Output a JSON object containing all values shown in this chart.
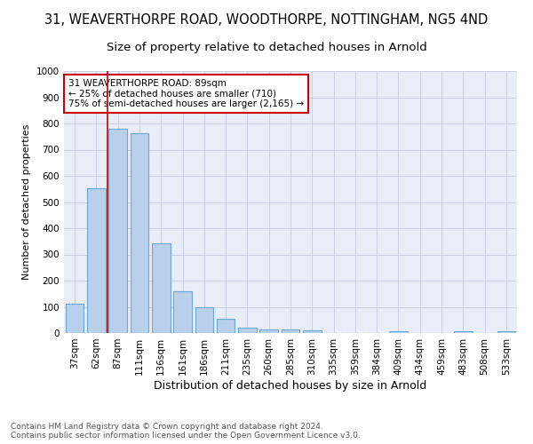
{
  "title": "31, WEAVERTHORPE ROAD, WOODTHORPE, NOTTINGHAM, NG5 4ND",
  "subtitle": "Size of property relative to detached houses in Arnold",
  "xlabel": "Distribution of detached houses by size in Arnold",
  "ylabel": "Number of detached properties",
  "footer_line1": "Contains HM Land Registry data © Crown copyright and database right 2024.",
  "footer_line2": "Contains public sector information licensed under the Open Government Licence v3.0.",
  "categories": [
    "37sqm",
    "62sqm",
    "87sqm",
    "111sqm",
    "136sqm",
    "161sqm",
    "186sqm",
    "211sqm",
    "235sqm",
    "260sqm",
    "285sqm",
    "310sqm",
    "335sqm",
    "359sqm",
    "384sqm",
    "409sqm",
    "434sqm",
    "459sqm",
    "483sqm",
    "508sqm",
    "533sqm"
  ],
  "values": [
    113,
    553,
    778,
    763,
    344,
    160,
    97,
    53,
    20,
    14,
    14,
    9,
    0,
    0,
    0,
    8,
    0,
    0,
    8,
    0,
    8
  ],
  "bar_color": "#b8d0ea",
  "bar_edge_color": "#6aaad4",
  "annotation_text": "31 WEAVERTHORPE ROAD: 89sqm\n← 25% of detached houses are smaller (710)\n75% of semi-detached houses are larger (2,165) →",
  "annotation_box_edge_color": "#cc0000",
  "annotation_box_face_color": "#ffffff",
  "vline_color": "#cc0000",
  "vline_bar_index": 2,
  "ylim": [
    0,
    1000
  ],
  "yticks": [
    0,
    100,
    200,
    300,
    400,
    500,
    600,
    700,
    800,
    900,
    1000
  ],
  "fig_bg_color": "#ffffff",
  "plot_bg_color": "#e8edf8",
  "grid_color": "#c5cce0",
  "title_fontsize": 10.5,
  "subtitle_fontsize": 9.5,
  "xlabel_fontsize": 9,
  "ylabel_fontsize": 8,
  "tick_fontsize": 7.5,
  "footer_fontsize": 6.5
}
